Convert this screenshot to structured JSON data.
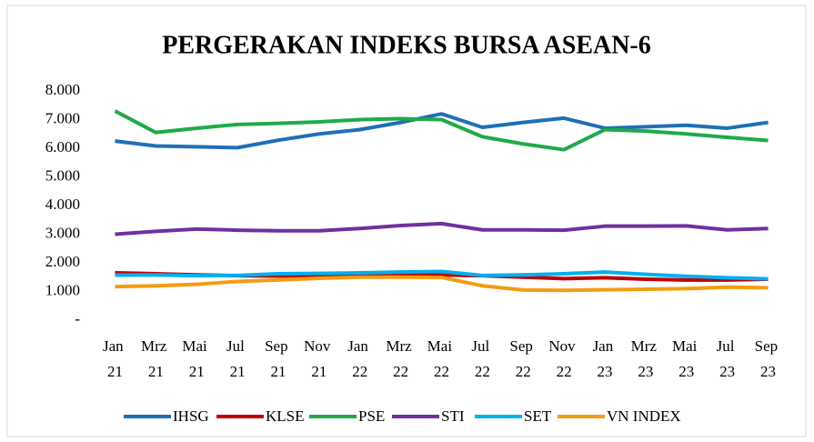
{
  "chart_data": {
    "type": "line",
    "title": "PERGERAKAN INDEKS BURSA ASEAN-6",
    "categories": [
      "Jan 21",
      "Mrz 21",
      "Mai 21",
      "Jul 21",
      "Sep 21",
      "Nov 21",
      "Jan 22",
      "Mrz 22",
      "Mai 22",
      "Jul 22",
      "Sep 22",
      "Nov 22",
      "Jan 23",
      "Mrz 23",
      "Mai 23",
      "Jul 23",
      "Sep 23"
    ],
    "series": [
      {
        "name": "IHSG",
        "color": "#1f6fb8",
        "values": [
          6250,
          6080,
          6050,
          6020,
          6280,
          6500,
          6650,
          6900,
          7200,
          6730,
          6900,
          7050,
          6700,
          6750,
          6800,
          6700,
          6900
        ]
      },
      {
        "name": "KLSE",
        "color": "#c00000",
        "values": [
          1650,
          1620,
          1580,
          1550,
          1540,
          1560,
          1600,
          1590,
          1580,
          1550,
          1500,
          1450,
          1480,
          1430,
          1400,
          1400,
          1430
        ]
      },
      {
        "name": "PSE",
        "color": "#1faa4a",
        "values": [
          7300,
          6550,
          6700,
          6830,
          6870,
          6920,
          7000,
          7030,
          7000,
          6400,
          6150,
          5950,
          6650,
          6600,
          6500,
          6380,
          6270
        ]
      },
      {
        "name": "STI",
        "color": "#7030a0",
        "values": [
          3000,
          3100,
          3180,
          3140,
          3120,
          3120,
          3200,
          3300,
          3370,
          3150,
          3150,
          3140,
          3280,
          3280,
          3290,
          3150,
          3200
        ]
      },
      {
        "name": "SET",
        "color": "#00b0f0",
        "values": [
          1570,
          1580,
          1550,
          1560,
          1620,
          1630,
          1650,
          1680,
          1700,
          1560,
          1580,
          1620,
          1680,
          1600,
          1530,
          1480,
          1440
        ]
      },
      {
        "name": "VN INDEX",
        "color": "#f39c12",
        "values": [
          1170,
          1200,
          1250,
          1350,
          1400,
          1460,
          1500,
          1500,
          1490,
          1200,
          1050,
          1040,
          1060,
          1080,
          1100,
          1150,
          1130
        ]
      }
    ],
    "ylim": [
      0,
      8000
    ],
    "yticks": [
      {
        "value": 0,
        "label": "-"
      },
      {
        "value": 1000,
        "label": "1.000"
      },
      {
        "value": 2000,
        "label": "2.000"
      },
      {
        "value": 3000,
        "label": "3.000"
      },
      {
        "value": 4000,
        "label": "4.000"
      },
      {
        "value": 5000,
        "label": "5.000"
      },
      {
        "value": 6000,
        "label": "6.000"
      },
      {
        "value": 7000,
        "label": "7.000"
      },
      {
        "value": 8000,
        "label": "8.000"
      }
    ],
    "legend": "bottom"
  }
}
